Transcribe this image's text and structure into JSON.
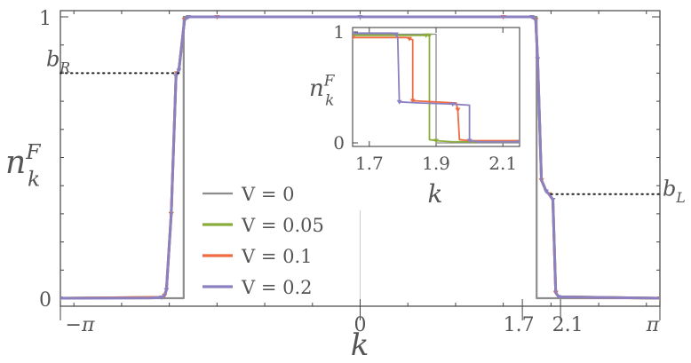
{
  "chart_data": {
    "type": "line",
    "xlabel": "k",
    "ylabel": "n",
    "ylabel_sup": "F",
    "ylabel_sub": "k",
    "x_ticks": [
      {
        "value": -3.14159,
        "label": "−π"
      },
      {
        "value": 0,
        "label": "0"
      },
      {
        "value": 1.7,
        "label": "1.7"
      },
      {
        "value": 2.1,
        "label": "2.1"
      },
      {
        "value": 3.14159,
        "label": "π"
      }
    ],
    "y_ticks": [
      {
        "value": 0,
        "label": "0"
      },
      {
        "value": 1,
        "label": "1"
      }
    ],
    "xlim": [
      -3.14159,
      3.14159
    ],
    "ylim": [
      0,
      1
    ],
    "annotations": [
      {
        "label": "b",
        "sub": "R",
        "x_from": -3.14159,
        "x_to": -1.9,
        "y": 0.8
      },
      {
        "label": "b",
        "sub": "L",
        "x_from": 2.0,
        "x_to": 3.14159,
        "y": 0.37
      }
    ],
    "series": [
      {
        "name": "V = 0",
        "color": "#8c8c8c",
        "x": [
          -3.14159,
          -1.85,
          -1.85,
          1.85,
          1.85,
          3.14159
        ],
        "y": [
          0,
          0,
          1,
          1,
          0,
          0
        ]
      },
      {
        "name": "V = 0.05",
        "color": "#8aac3c",
        "x": [
          -3.14159,
          -2.08,
          -2.05,
          -2.03,
          -1.98,
          -1.93,
          -1.92,
          -1.9,
          -1.84,
          -1.8,
          -1.5,
          0,
          1.5,
          1.8,
          1.84,
          1.86,
          1.9,
          1.95,
          1.98,
          2.02,
          2.05,
          2.08,
          3.14159
        ],
        "y": [
          0,
          0.003,
          0.01,
          0.03,
          0.3,
          0.79,
          0.8,
          0.81,
          0.99,
          1.0,
          1.0,
          1.0,
          1.0,
          1.0,
          0.99,
          0.85,
          0.42,
          0.38,
          0.37,
          0.35,
          0.02,
          0.005,
          0
        ]
      },
      {
        "name": "V = 0.1",
        "color": "#ee6a43",
        "x": [
          -3.14159,
          -2.08,
          -2.05,
          -2.03,
          -1.98,
          -1.93,
          -1.92,
          -1.9,
          -1.84,
          -1.8,
          -1.5,
          0,
          1.5,
          1.8,
          1.84,
          1.86,
          1.9,
          1.95,
          1.98,
          2.02,
          2.05,
          2.08,
          3.14159
        ],
        "y": [
          0,
          0.003,
          0.01,
          0.03,
          0.3,
          0.79,
          0.8,
          0.81,
          0.99,
          1.0,
          1.0,
          1.0,
          1.0,
          1.0,
          0.99,
          0.85,
          0.42,
          0.38,
          0.37,
          0.35,
          0.02,
          0.005,
          0
        ]
      },
      {
        "name": "V = 0.2",
        "color": "#8b80c0",
        "x": [
          -3.14159,
          -2.2,
          -2.08,
          -2.05,
          -2.03,
          -1.98,
          -1.93,
          -1.92,
          -1.9,
          -1.84,
          -1.8,
          -1.5,
          0,
          1.5,
          1.8,
          1.84,
          1.86,
          1.9,
          1.95,
          1.98,
          2.02,
          2.05,
          2.08,
          3.14159
        ],
        "y": [
          0,
          0.001,
          0.003,
          0.01,
          0.03,
          0.3,
          0.79,
          0.8,
          0.81,
          0.99,
          1.0,
          1.0,
          1.0,
          1.0,
          1.0,
          0.99,
          0.85,
          0.42,
          0.38,
          0.37,
          0.35,
          0.02,
          0.005,
          0
        ]
      }
    ],
    "legend": {
      "placement": "center-left"
    },
    "inset": {
      "xlabel": "k",
      "ylabel": "n",
      "ylabel_sup": "F",
      "ylabel_sub": "k",
      "xlim": [
        1.65,
        2.15
      ],
      "ylim": [
        0,
        1
      ],
      "x_ticks": [
        {
          "value": 1.7,
          "label": "1.7"
        },
        {
          "value": 1.9,
          "label": "1.9"
        },
        {
          "value": 2.1,
          "label": "2.1"
        }
      ],
      "y_ticks": [
        {
          "value": 0,
          "label": "0"
        },
        {
          "value": 1,
          "label": "1"
        }
      ],
      "series": [
        {
          "name": "V = 0",
          "color": "#8c8c8c",
          "x": [
            1.65,
            1.85,
            1.85,
            1.9,
            1.9,
            2.15
          ],
          "y": [
            0.98,
            0.98,
            0.98,
            0.98,
            0,
            0
          ]
        },
        {
          "name": "V = 0.05",
          "color": "#8aac3c",
          "x": [
            1.65,
            1.86,
            1.87,
            1.875,
            1.88,
            1.88,
            1.9,
            1.95,
            2.15
          ],
          "y": [
            0.97,
            0.97,
            0.97,
            0.97,
            0.97,
            0.03,
            0.02,
            0.01,
            0.01
          ]
        },
        {
          "name": "V = 0.1",
          "color": "#ee6a43",
          "x": [
            1.65,
            1.81,
            1.82,
            1.83,
            1.83,
            1.96,
            1.965,
            1.97,
            2.0,
            2.15
          ],
          "y": [
            0.95,
            0.95,
            0.94,
            0.93,
            0.38,
            0.36,
            0.3,
            0.03,
            0.02,
            0.02
          ]
        },
        {
          "name": "V = 0.2",
          "color": "#8b80c0",
          "x": [
            1.65,
            1.77,
            1.78,
            1.785,
            1.79,
            1.85,
            1.95,
            2.0,
            2.0,
            2.03,
            2.15
          ],
          "y": [
            0.99,
            0.99,
            0.98,
            0.95,
            0.37,
            0.36,
            0.35,
            0.34,
            0.02,
            0.01,
            0.01
          ]
        }
      ]
    }
  }
}
